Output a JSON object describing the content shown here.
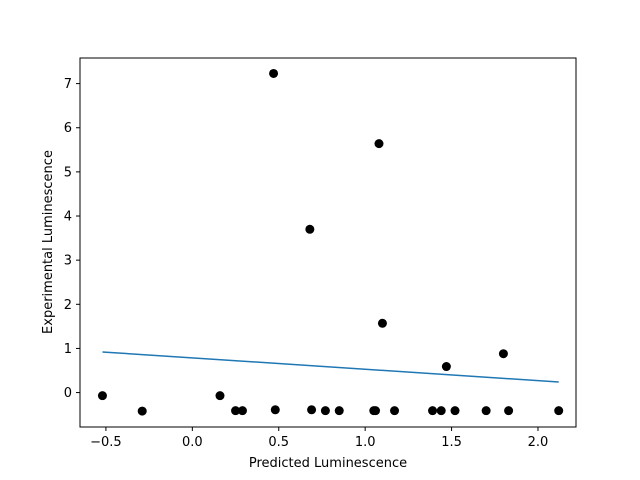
{
  "chart_data": {
    "type": "scatter",
    "title": "",
    "xlabel": "Predicted Luminescence",
    "ylabel": "Experimental Luminescence",
    "xlim": [
      -0.65,
      2.22
    ],
    "ylim": [
      -0.78,
      7.58
    ],
    "xticks": [
      -0.5,
      0.0,
      0.5,
      1.0,
      1.5,
      2.0
    ],
    "xtick_labels": [
      "−0.5",
      "0.0",
      "0.5",
      "1.0",
      "1.5",
      "2.0"
    ],
    "yticks": [
      0,
      1,
      2,
      3,
      4,
      5,
      6,
      7
    ],
    "ytick_labels": [
      "0",
      "1",
      "2",
      "3",
      "4",
      "5",
      "6",
      "7"
    ],
    "grid": false,
    "points": {
      "color": "#000000",
      "x": [
        -0.52,
        -0.29,
        0.16,
        0.25,
        0.29,
        0.47,
        0.48,
        0.68,
        0.69,
        0.77,
        0.85,
        1.05,
        1.06,
        1.08,
        1.1,
        1.17,
        1.39,
        1.44,
        1.47,
        1.52,
        1.7,
        1.8,
        1.83,
        2.12
      ],
      "y": [
        -0.07,
        -0.42,
        -0.07,
        -0.41,
        -0.41,
        7.23,
        -0.39,
        3.7,
        -0.39,
        -0.41,
        -0.41,
        -0.41,
        -0.41,
        5.64,
        1.57,
        -0.41,
        -0.41,
        -0.41,
        0.59,
        -0.41,
        -0.41,
        0.88,
        -0.41,
        -0.41
      ]
    },
    "fit_line": {
      "color": "#1f77b4",
      "x": [
        -0.52,
        2.12
      ],
      "y": [
        0.92,
        0.24
      ]
    }
  }
}
